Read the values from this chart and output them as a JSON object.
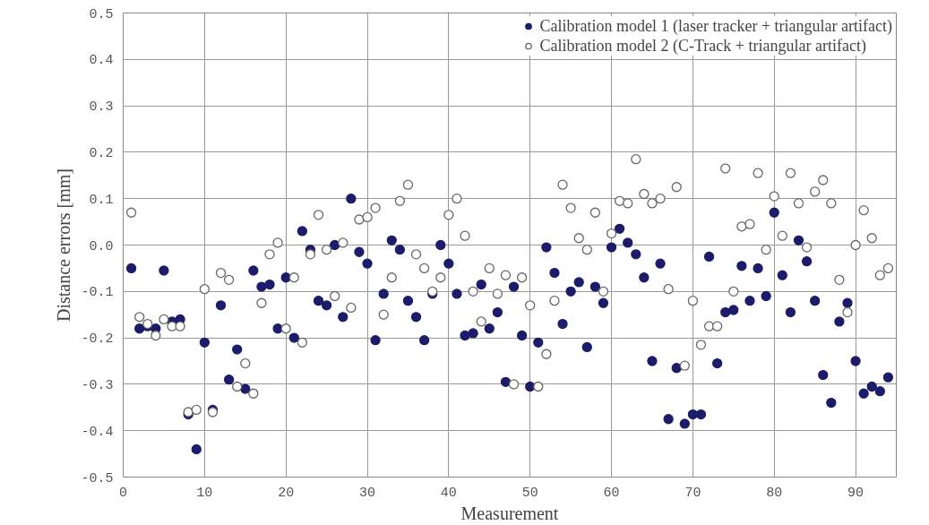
{
  "chart_data": {
    "type": "scatter",
    "xlabel": "Measurement",
    "ylabel": "Distance errors [mm]",
    "x": [
      1,
      2,
      3,
      4,
      5,
      6,
      7,
      8,
      9,
      10,
      11,
      12,
      13,
      14,
      15,
      16,
      17,
      18,
      19,
      20,
      21,
      22,
      23,
      24,
      25,
      26,
      27,
      28,
      29,
      30,
      31,
      32,
      33,
      34,
      35,
      36,
      37,
      38,
      39,
      40,
      41,
      42,
      43,
      44,
      45,
      46,
      47,
      48,
      49,
      50,
      51,
      52,
      53,
      54,
      55,
      56,
      57,
      58,
      59,
      60,
      61,
      62,
      63,
      64,
      65,
      66,
      67,
      68,
      69,
      70,
      71,
      72,
      73,
      74,
      75,
      76,
      77,
      78,
      79,
      80,
      81,
      82,
      83,
      84,
      85,
      86,
      87,
      88,
      89,
      90,
      91,
      92,
      93,
      94
    ],
    "series": [
      {
        "name": "Calibration model 1 (laser tracker + triangular artifact)",
        "color": "#1c1c6b",
        "values": [
          -0.05,
          -0.18,
          -0.175,
          -0.18,
          -0.055,
          -0.165,
          -0.16,
          -0.365,
          -0.44,
          -0.21,
          -0.355,
          -0.13,
          -0.29,
          -0.225,
          -0.31,
          -0.055,
          -0.09,
          -0.085,
          -0.18,
          -0.07,
          -0.2,
          0.03,
          -0.01,
          -0.12,
          -0.13,
          0.0,
          -0.155,
          0.1,
          -0.015,
          -0.04,
          -0.205,
          -0.105,
          0.01,
          -0.01,
          -0.12,
          -0.155,
          -0.205,
          -0.105,
          0.0,
          -0.04,
          -0.105,
          -0.195,
          -0.19,
          -0.085,
          -0.18,
          -0.145,
          -0.295,
          -0.09,
          -0.195,
          -0.305,
          -0.21,
          -0.005,
          -0.06,
          -0.17,
          -0.1,
          -0.08,
          -0.22,
          -0.09,
          -0.125,
          -0.005,
          0.035,
          0.005,
          -0.02,
          -0.07,
          -0.25,
          -0.04,
          -0.375,
          -0.265,
          -0.385,
          -0.365,
          -0.365,
          -0.025,
          -0.255,
          -0.145,
          -0.14,
          -0.045,
          -0.12,
          -0.05,
          -0.11,
          0.07,
          -0.065,
          -0.145,
          0.01,
          -0.035,
          -0.12,
          -0.28,
          -0.34,
          -0.165,
          -0.125,
          -0.25,
          -0.32,
          -0.305,
          -0.315,
          -0.285
        ]
      },
      {
        "name": "Calibration model 2 (C-Track + triangular artifact)",
        "color": "#666666",
        "values": [
          0.07,
          -0.155,
          -0.17,
          -0.195,
          -0.16,
          -0.175,
          -0.175,
          -0.36,
          -0.355,
          -0.095,
          -0.36,
          -0.06,
          -0.075,
          -0.305,
          -0.255,
          -0.32,
          -0.125,
          -0.02,
          0.005,
          -0.18,
          -0.07,
          -0.21,
          -0.02,
          0.065,
          -0.01,
          -0.11,
          0.005,
          -0.135,
          0.055,
          0.06,
          0.08,
          -0.15,
          -0.07,
          0.095,
          0.13,
          -0.02,
          -0.05,
          -0.1,
          -0.07,
          0.065,
          0.1,
          0.02,
          -0.1,
          -0.165,
          -0.05,
          -0.105,
          -0.065,
          -0.3,
          -0.07,
          -0.13,
          -0.305,
          -0.235,
          -0.12,
          0.13,
          0.08,
          0.015,
          -0.01,
          0.07,
          -0.1,
          0.025,
          0.095,
          0.09,
          0.185,
          0.11,
          0.09,
          0.1,
          -0.095,
          0.125,
          -0.26,
          -0.12,
          -0.215,
          -0.175,
          -0.175,
          0.165,
          -0.1,
          0.04,
          0.045,
          0.155,
          -0.01,
          0.105,
          0.02,
          0.155,
          0.09,
          -0.005,
          0.115,
          0.14,
          0.09,
          -0.075,
          -0.145,
          0.0,
          0.075,
          0.015,
          -0.065,
          -0.05
        ]
      }
    ],
    "xlim": [
      0,
      95
    ],
    "ylim": [
      -0.5,
      0.5
    ],
    "xticks": [
      0,
      10,
      20,
      30,
      40,
      50,
      60,
      70,
      80,
      90
    ],
    "yticks": [
      -0.5,
      -0.4,
      -0.3,
      -0.2,
      -0.1,
      {
        "value": 0,
        "label": "0.0"
      },
      0.1,
      0.2,
      0.3,
      0.4,
      0.5
    ],
    "grid": true,
    "legend": "top right",
    "marker": "circle"
  }
}
